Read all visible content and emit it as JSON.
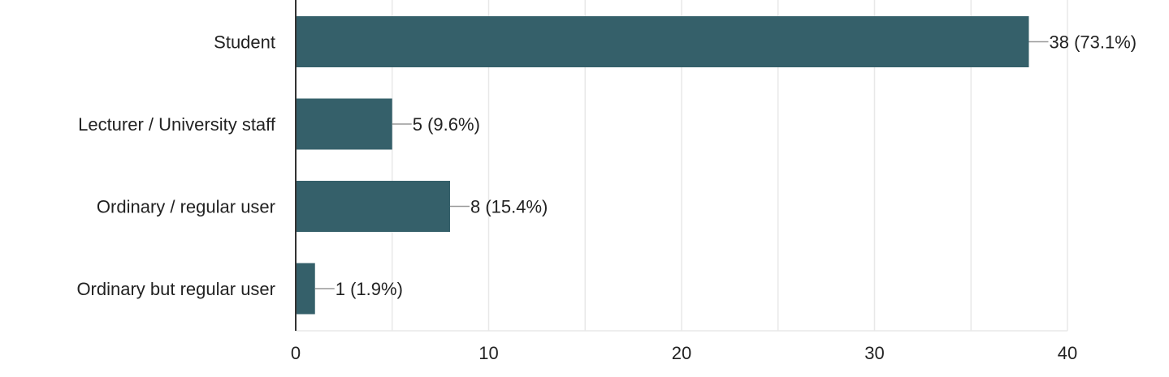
{
  "chart_data": {
    "type": "bar",
    "orientation": "horizontal",
    "categories": [
      "Student",
      "Lecturer / University staff",
      "Ordinary / regular user",
      "Ordinary but regular user"
    ],
    "values": [
      38,
      5,
      8,
      1
    ],
    "data_labels": [
      "38 (73.1%)",
      "5 (9.6%)",
      "8 (15.4%)",
      "1 (1.9%)"
    ],
    "xticks": [
      0,
      10,
      20,
      30,
      40
    ],
    "xlim": [
      0,
      40
    ],
    "grid": true,
    "bar_color": "#35606a",
    "gridline_color": "#e8e8e8",
    "axis_color": "#333333",
    "leader_line_color": "#999999"
  }
}
